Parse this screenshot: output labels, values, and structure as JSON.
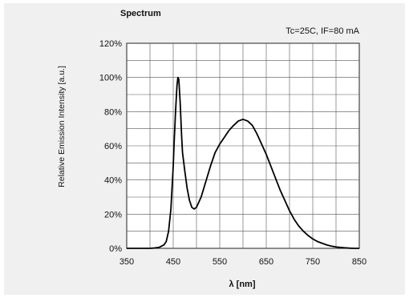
{
  "chart_data": {
    "type": "line",
    "title": "Spectrum",
    "annotation": "Tc=25C,  IF=80 mA",
    "xlabel": "λ [nm]",
    "ylabel": "Relative Emission Intensity [a.u.]",
    "xlim": [
      350,
      850
    ],
    "ylim": [
      0,
      120
    ],
    "xticks": [
      350,
      450,
      550,
      650,
      750,
      850
    ],
    "xtick_labels": [
      "350",
      "450",
      "550",
      "650",
      "750",
      "850"
    ],
    "yticks": [
      0,
      20,
      40,
      60,
      80,
      100,
      120
    ],
    "ytick_labels": [
      "0%",
      "20%",
      "40%",
      "60%",
      "80%",
      "100%",
      "120%"
    ],
    "grid": true,
    "series": [
      {
        "color": "#000000",
        "x": [
          350,
          380,
          400,
          410,
          420,
          430,
          435,
          440,
          445,
          450,
          452,
          455,
          458,
          460,
          462,
          465,
          468,
          470,
          475,
          480,
          485,
          490,
          495,
          500,
          510,
          520,
          530,
          540,
          550,
          560,
          570,
          580,
          590,
          600,
          610,
          620,
          630,
          640,
          650,
          660,
          670,
          680,
          690,
          700,
          710,
          720,
          730,
          740,
          750,
          760,
          770,
          780,
          790,
          800,
          810,
          820,
          830,
          840,
          850
        ],
        "y": [
          0,
          0,
          0,
          0.2,
          0.6,
          2,
          4,
          10,
          23,
          48,
          62,
          80,
          95,
          100,
          99,
          85,
          66,
          56,
          45,
          35,
          28,
          24,
          23,
          24,
          30,
          39,
          48,
          56,
          61,
          65,
          69,
          72,
          74.5,
          75.5,
          74.5,
          72,
          67,
          61,
          55,
          48,
          41,
          34,
          28,
          22,
          17,
          13,
          10,
          7.5,
          5.5,
          4,
          3,
          2,
          1.3,
          0.8,
          0.5,
          0.3,
          0.1,
          0,
          0
        ]
      }
    ]
  }
}
